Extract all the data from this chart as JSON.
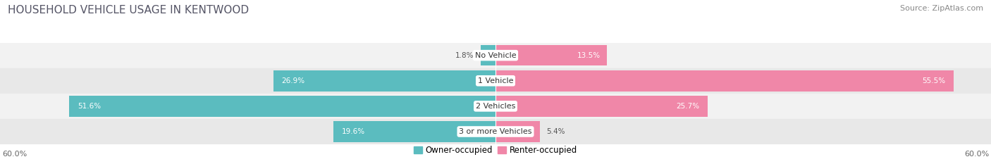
{
  "title": "HOUSEHOLD VEHICLE USAGE IN KENTWOOD",
  "source": "Source: ZipAtlas.com",
  "categories": [
    "No Vehicle",
    "1 Vehicle",
    "2 Vehicles",
    "3 or more Vehicles"
  ],
  "owner_values": [
    1.8,
    26.9,
    51.6,
    19.6
  ],
  "renter_values": [
    13.5,
    55.5,
    25.7,
    5.4
  ],
  "owner_color": "#5bbcbf",
  "renter_color": "#f087a8",
  "row_bg_colors": [
    "#f2f2f2",
    "#e8e8e8"
  ],
  "xlim": [
    -60,
    60
  ],
  "bar_height": 0.82,
  "title_fontsize": 11,
  "source_fontsize": 8,
  "legend_fontsize": 8.5,
  "category_fontsize": 8,
  "value_fontsize": 7.5,
  "tick_fontsize": 8
}
